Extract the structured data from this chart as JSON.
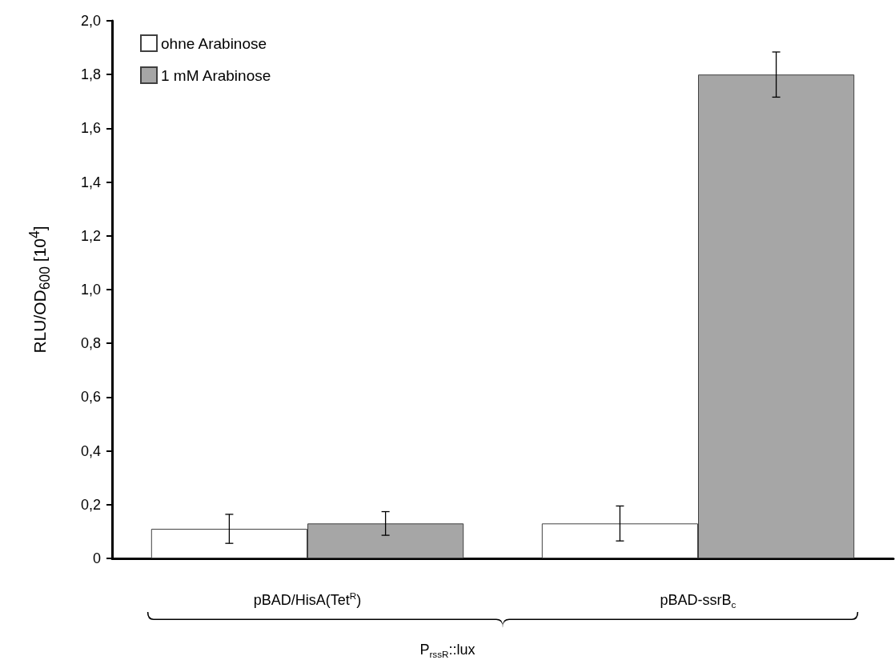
{
  "chart_data": {
    "type": "bar",
    "ylabel": "RLU/OD$_{600}$ [10$^{4}$]",
    "xlabel": "P$_{rssR}$::lux",
    "categories": [
      "pBAD/HisA(Tet$^{R}$)",
      "pBAD-ssrB$_{c}$"
    ],
    "series": [
      {
        "name": "ohne Arabinose",
        "color": "#ffffff",
        "values": [
          0.11,
          0.13
        ],
        "errors": [
          0.054,
          0.065
        ]
      },
      {
        "name": "1 mM Arabinose",
        "color": "#a6a6a6",
        "values": [
          0.13,
          1.8
        ],
        "errors": [
          0.044,
          0.084
        ]
      }
    ],
    "ylim": [
      0,
      2
    ],
    "yticks": [
      0,
      {
        "value": 0.2,
        "label": "0,2"
      },
      {
        "value": 0.4,
        "label": "0,4"
      },
      {
        "value": 0.6,
        "label": "0,6"
      },
      {
        "value": 0.8,
        "label": "0,8"
      },
      {
        "value": 1,
        "label": "1,0"
      },
      {
        "value": 1.2,
        "label": "1,2"
      },
      {
        "value": 1.4,
        "label": "1,4"
      },
      {
        "value": 1.6,
        "label": "1,6"
      },
      {
        "value": 1.8,
        "label": "1,8"
      },
      {
        "value": 2,
        "label": "2,0"
      }
    ],
    "grid": false,
    "legend": "top left"
  }
}
